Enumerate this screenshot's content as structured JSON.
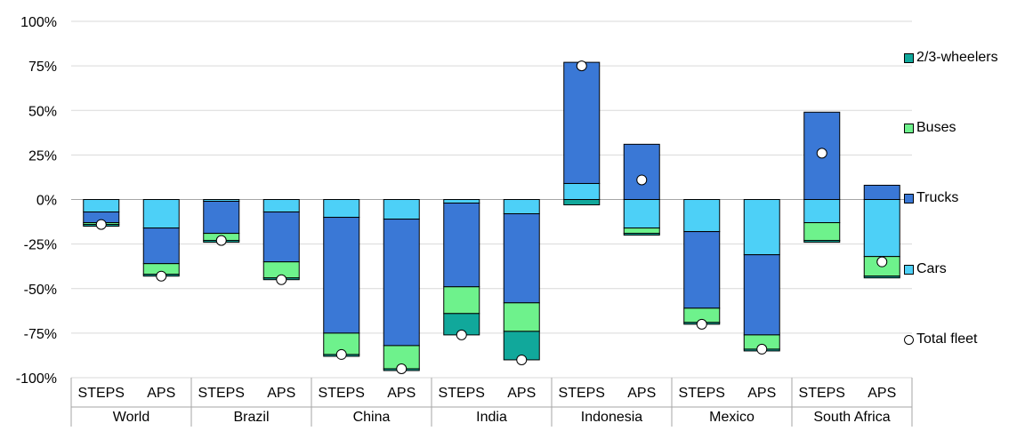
{
  "chart_data": {
    "type": "bar",
    "stacked": true,
    "groups": [
      "World",
      "Brazil",
      "China",
      "India",
      "Indonesia",
      "Mexico",
      "South Africa"
    ],
    "scenarios": [
      "STEPS",
      "APS"
    ],
    "categories": [
      "World STEPS",
      "World APS",
      "Brazil STEPS",
      "Brazil APS",
      "China STEPS",
      "China APS",
      "India STEPS",
      "India APS",
      "Indonesia STEPS",
      "Indonesia APS",
      "Mexico STEPS",
      "Mexico APS",
      "South Africa STEPS",
      "South Africa APS"
    ],
    "y_tick_labels": [
      "100%",
      "75%",
      "50%",
      "25%",
      "0%",
      "-25%",
      "-50%",
      "-75%",
      "-100%"
    ],
    "y_ticks": [
      100,
      75,
      50,
      25,
      0,
      -25,
      -50,
      -75,
      -100
    ],
    "ylim": [
      -100,
      100
    ],
    "grid": true,
    "legend_position": "right",
    "series": [
      {
        "name": "Cars",
        "color": "#4dd0f7",
        "values": [
          -7,
          -16,
          -1,
          -7,
          -10,
          -11,
          -2,
          -8,
          9,
          -16,
          -18,
          -31,
          -13,
          -32
        ]
      },
      {
        "name": "Trucks",
        "color": "#3a78d6",
        "values": [
          -6,
          -20,
          -18,
          -28,
          -65,
          -71,
          -47,
          -50,
          68,
          31,
          -43,
          -45,
          49,
          8
        ]
      },
      {
        "name": "Buses",
        "color": "#6ef28c",
        "values": [
          -1,
          -6,
          -4,
          -9,
          -12,
          -13,
          -15,
          -16,
          0,
          -3,
          -8,
          -8,
          -10,
          -11
        ]
      },
      {
        "name": "2/3-wheelers",
        "color": "#11a89b",
        "values": [
          -1,
          -1,
          -1,
          -1,
          -1,
          -1,
          -12,
          -16,
          -3,
          -1,
          -1,
          -1,
          -1,
          -1
        ]
      }
    ],
    "total_fleet": {
      "name": "Total fleet",
      "values": [
        -14,
        -43,
        -23,
        -45,
        -87,
        -95,
        -76,
        -90,
        75,
        11,
        -70,
        -84,
        26,
        -35
      ]
    }
  }
}
